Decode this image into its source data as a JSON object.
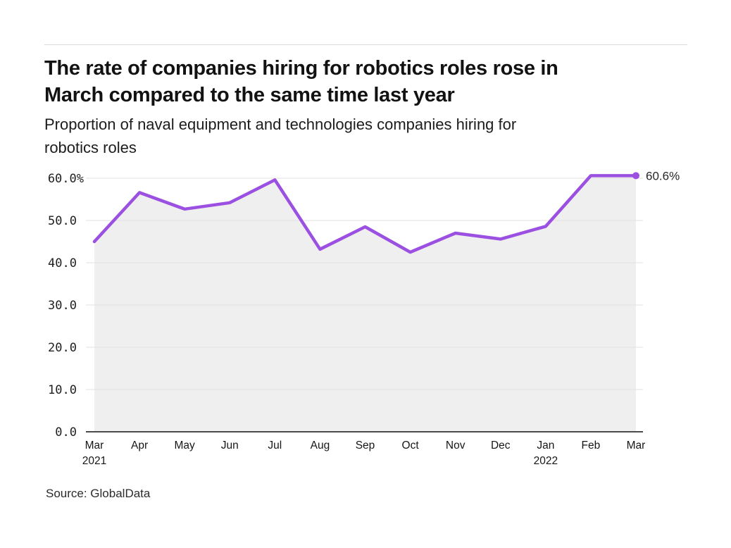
{
  "header": {
    "title_lines": [
      "The rate of companies hiring for robotics roles rose in",
      "March compared to the same time last year"
    ],
    "subtitle_lines": [
      "Proportion of naval equipment and technologies companies hiring for",
      "robotics roles"
    ]
  },
  "chart_data": {
    "type": "line",
    "title": "The rate of companies hiring for robotics roles rose in March compared to the same time last year",
    "subtitle": "Proportion of naval equipment and technologies companies hiring for robotics roles",
    "categories": [
      "Mar",
      "Apr",
      "May",
      "Jun",
      "Jul",
      "Aug",
      "Sep",
      "Oct",
      "Nov",
      "Dec",
      "Jan",
      "Feb",
      "Mar"
    ],
    "year_rows": [
      {
        "index": 0,
        "label": "2021"
      },
      {
        "index": 10,
        "label": "2022"
      }
    ],
    "values": [
      45.0,
      56.6,
      52.7,
      54.2,
      59.6,
      43.2,
      48.5,
      42.5,
      47.0,
      45.6,
      48.6,
      60.6,
      60.6
    ],
    "end_annotation": "60.6%",
    "yticks": [
      {
        "value": 60,
        "label": "60.0%"
      },
      {
        "value": 50,
        "label": "50.0"
      },
      {
        "value": 40,
        "label": "40.0"
      },
      {
        "value": 30,
        "label": "30.0"
      },
      {
        "value": 20,
        "label": "20.0"
      },
      {
        "value": 10,
        "label": "10.0"
      },
      {
        "value": 0,
        "label": "0.0"
      }
    ],
    "ylim": [
      0,
      60
    ],
    "grid": true,
    "legend": false,
    "xlabel": "",
    "ylabel": ""
  },
  "source": {
    "label": "Source: GlobalData"
  },
  "colors": {
    "line": "#9B50E1",
    "area_fill": "#EFEFEF",
    "gridline": "#E2E2E2",
    "axis": "#4B4B4B",
    "tick_text": "#1F1F1F",
    "annotation_text": "#262626"
  }
}
